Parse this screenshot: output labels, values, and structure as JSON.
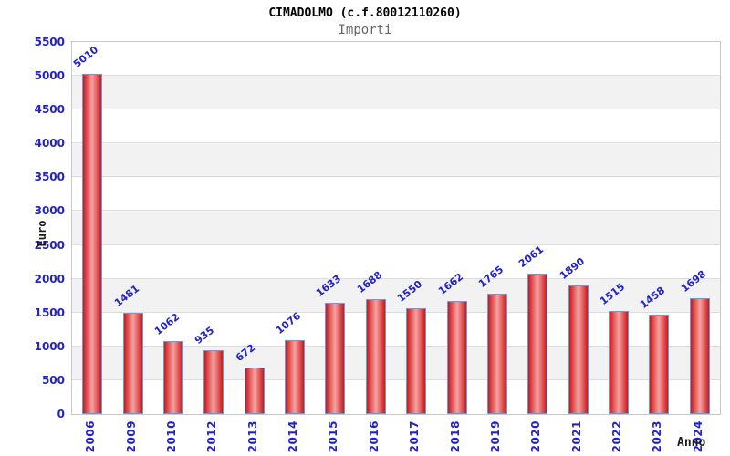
{
  "chart_data": {
    "type": "bar",
    "title": "CIMADOLMO (c.f.80012110260)",
    "subtitle": "Importi",
    "xlabel": "Anno",
    "ylabel": "Euro",
    "categories": [
      "2006",
      "2009",
      "2010",
      "2012",
      "2013",
      "2014",
      "2015",
      "2016",
      "2017",
      "2018",
      "2019",
      "2020",
      "2021",
      "2022",
      "2023",
      "2024"
    ],
    "values": [
      5010,
      1481,
      1062,
      935,
      672,
      1076,
      1633,
      1688,
      1550,
      1662,
      1765,
      2061,
      1890,
      1515,
      1458,
      1698
    ],
    "ylim": [
      0,
      5500
    ],
    "yticks": [
      0,
      500,
      1000,
      1500,
      2000,
      2500,
      3000,
      3500,
      4000,
      4500,
      5000,
      5500
    ],
    "grid": true,
    "legend_position": "none",
    "background_bands": "alternating white / light gray every 500",
    "colors": {
      "tick_label": "#2222cc",
      "value_label": "#2222cc",
      "bar_edge": "#ce1717",
      "bar_highlight": "#f6a3a3",
      "bar_border": "#58a0e8",
      "band": "#f2f2f2",
      "gridline": "#dcdcdc",
      "plot_border": "#c9c9c9",
      "title": "#000000",
      "subtitle": "#666666",
      "axis_title": "#1a1a1a"
    }
  }
}
